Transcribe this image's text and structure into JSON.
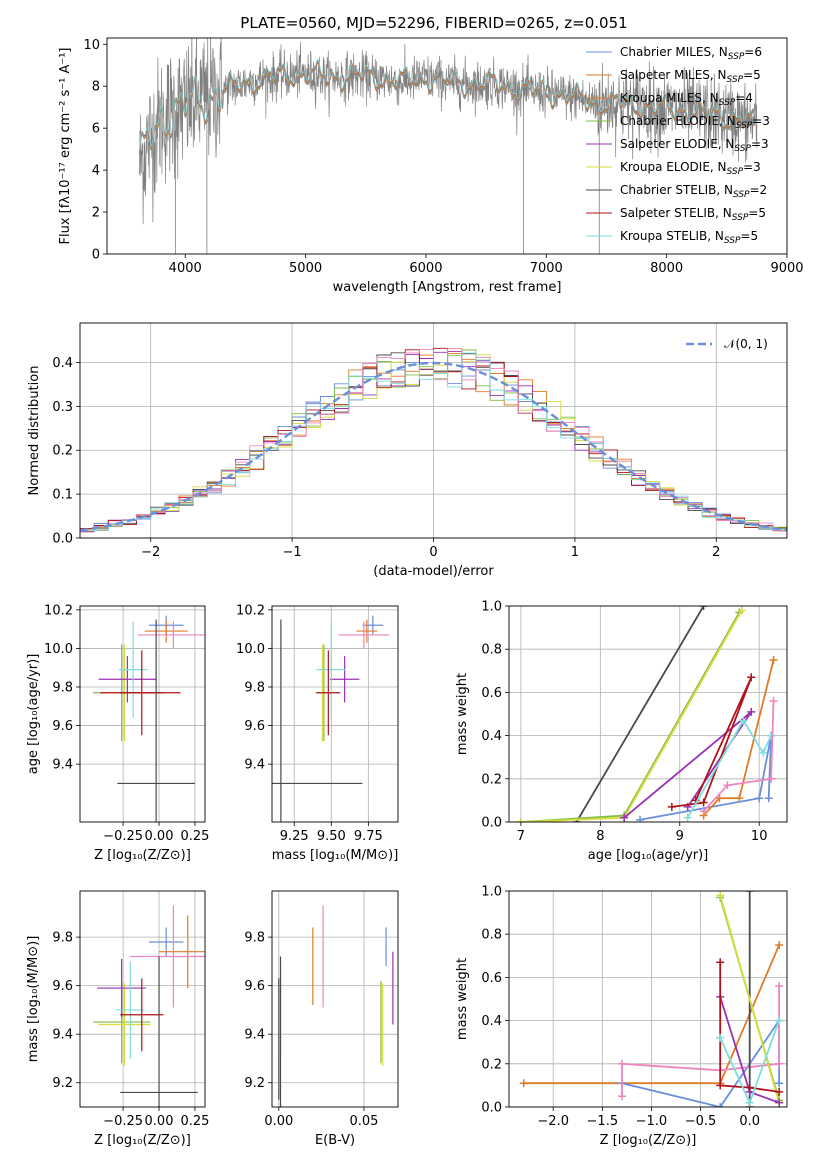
{
  "title": "PLATE=0560, MJD=52296, FIBERID=0265, z=0.051",
  "colors": {
    "blue": "#6a8fdc",
    "orange": "#e07b26",
    "green": "#7fbf45",
    "purple": "#9b30b5",
    "yellow": "#d8dc3e",
    "darkgray": "#4a4a4a",
    "red": "#b0121a",
    "pink": "#ef84c0",
    "cyan": "#7fdde0",
    "data_gray": "#808080",
    "grid": "#b0b0b0"
  },
  "chart_data": [
    {
      "type": "line",
      "id": "spectrum",
      "xlabel": "wavelength [Angstrom, rest frame]",
      "ylabel": "Flux [fλ10⁻¹⁷ erg cm⁻² s⁻¹ A⁻¹]",
      "xlim": [
        3350,
        9000
      ],
      "ylim": [
        0,
        10.3
      ],
      "xticks": [
        "4000",
        "5000",
        "6000",
        "7000",
        "8000",
        "9000"
      ],
      "yticks": [
        "0",
        "2",
        "4",
        "6",
        "8",
        "10"
      ],
      "grid": false,
      "legend_position": "upper right",
      "legend": [
        {
          "label": "Chabrier MILES, N",
          "sub": "SSP",
          "suffix": "=6",
          "color": "#6a8fdc"
        },
        {
          "label": "Salpeter MILES, N",
          "sub": "SSP",
          "suffix": "=5",
          "color": "#e07b26"
        },
        {
          "label": "Kroupa MILES, N",
          "sub": "SSP",
          "suffix": "=4",
          "color": "#e07b26"
        },
        {
          "label": "Chabrier ELODIE, N",
          "sub": "SSP",
          "suffix": "=3",
          "color": "#7fbf45"
        },
        {
          "label": "Salpeter ELODIE, N",
          "sub": "SSP",
          "suffix": "=3",
          "color": "#9b30b5"
        },
        {
          "label": "Kroupa ELODIE, N",
          "sub": "SSP",
          "suffix": "=3",
          "color": "#d8dc3e"
        },
        {
          "label": "Chabrier STELIB, N",
          "sub": "SSP",
          "suffix": "=2",
          "color": "#4a4a4a"
        },
        {
          "label": "Salpeter STELIB, N",
          "sub": "SSP",
          "suffix": "=5",
          "color": "#b0121a"
        },
        {
          "label": "Kroupa STELIB, N",
          "sub": "SSP",
          "suffix": "=5",
          "color": "#7fdde0"
        }
      ],
      "continuum": [
        [
          3620,
          4.3
        ],
        [
          3700,
          5.4
        ],
        [
          3800,
          6.4
        ],
        [
          3900,
          6.8
        ],
        [
          4000,
          7.0
        ],
        [
          4100,
          7.3
        ],
        [
          4200,
          7.5
        ],
        [
          4400,
          8.0
        ],
        [
          4600,
          8.3
        ],
        [
          4800,
          8.5
        ],
        [
          5000,
          8.6
        ],
        [
          5200,
          8.4
        ],
        [
          5400,
          8.5
        ],
        [
          5600,
          8.4
        ],
        [
          5800,
          8.2
        ],
        [
          6000,
          8.4
        ],
        [
          6200,
          8.2
        ],
        [
          6400,
          8.1
        ],
        [
          6600,
          8.1
        ],
        [
          6800,
          7.8
        ],
        [
          7000,
          7.7
        ],
        [
          7200,
          7.5
        ],
        [
          7400,
          7.2
        ],
        [
          7600,
          7.2
        ],
        [
          7800,
          7.1
        ],
        [
          8000,
          6.9
        ],
        [
          8200,
          6.8
        ],
        [
          8400,
          6.6
        ],
        [
          8600,
          6.4
        ],
        [
          8750,
          6.2
        ]
      ]
    },
    {
      "type": "line",
      "id": "residuals",
      "xlabel": "(data-model)/error",
      "ylabel": "Normed distribution",
      "xlim": [
        -2.5,
        2.5
      ],
      "ylim": [
        0,
        0.49
      ],
      "xticks": [
        "−2",
        "−1",
        "0",
        "1",
        "2"
      ],
      "yticks": [
        "0.0",
        "0.1",
        "0.2",
        "0.3",
        "0.4"
      ],
      "grid": true,
      "legend": "𝒩(0, 1)",
      "series": [
        {
          "name": "𝒩(0, 1)",
          "mu": 0,
          "sigma": 1
        }
      ]
    },
    {
      "type": "scatter",
      "id": "age_vs_Z",
      "xlabel": "Z [log₁₀(Z/Z⊙)]",
      "ylabel": "age  [log₁₀(age/yr)]",
      "xlim": [
        -0.55,
        0.32
      ],
      "ylim": [
        9.1,
        10.22
      ],
      "xticks": [
        "−0.25",
        "0.00",
        "0.25"
      ],
      "yticks": [
        "9.4",
        "9.6",
        "9.8",
        "10.0",
        "10.2"
      ],
      "grid": true,
      "points": [
        {
          "x": 0.05,
          "y": 10.12,
          "xerr": 0.12,
          "yerr": 0.05,
          "color": "#6a8fdc"
        },
        {
          "x": 0.05,
          "y": 10.09,
          "xerr": 0.15,
          "yerr": 0.06,
          "color": "#e07b26"
        },
        {
          "x": 0.1,
          "y": 10.07,
          "xerr": 0.25,
          "yerr": 0.07,
          "color": "#ef84c0"
        },
        {
          "x": -0.26,
          "y": 9.77,
          "xerr": 0.2,
          "yerr": 0.25,
          "color": "#7fbf45"
        },
        {
          "x": -0.24,
          "y": 9.77,
          "xerr": 0.18,
          "yerr": 0.25,
          "color": "#d8dc3e"
        },
        {
          "x": -0.22,
          "y": 9.84,
          "xerr": 0.2,
          "yerr": 0.12,
          "color": "#9b30b5"
        },
        {
          "x": -0.18,
          "y": 9.89,
          "xerr": 0.1,
          "yerr": 0.25,
          "color": "#7fdde0"
        },
        {
          "x": -0.12,
          "y": 9.77,
          "xerr": 0.15,
          "yerr": 0.22,
          "color": "#b0121a"
        },
        {
          "x": -0.13,
          "y": 9.77,
          "xerr": 0.28,
          "yerr": 0.0,
          "color": "#b0121a"
        },
        {
          "x": -0.02,
          "y": 9.3,
          "xerr": 0.27,
          "yerr": 0.85,
          "color": "#4a4a4a"
        }
      ]
    },
    {
      "type": "scatter",
      "id": "age_vs_mass",
      "xlabel": "mass [log₁₀(M/M⊙)]",
      "ylabel": "",
      "xlim": [
        9.1,
        9.95
      ],
      "ylim": [
        9.1,
        10.22
      ],
      "xticks": [
        "9.25",
        "9.50",
        "9.75"
      ],
      "yticks": [
        "9.4",
        "9.6",
        "9.8",
        "10.0",
        "10.2"
      ],
      "grid": true,
      "points": [
        {
          "x": 9.78,
          "y": 10.12,
          "xerr": 0.07,
          "yerr": 0.05,
          "color": "#6a8fdc"
        },
        {
          "x": 9.74,
          "y": 10.09,
          "xerr": 0.07,
          "yerr": 0.06,
          "color": "#e07b26"
        },
        {
          "x": 9.72,
          "y": 10.07,
          "xerr": 0.17,
          "yerr": 0.07,
          "color": "#ef84c0"
        },
        {
          "x": 9.45,
          "y": 9.77,
          "xerr": 0.05,
          "yerr": 0.25,
          "color": "#7fbf45"
        },
        {
          "x": 9.44,
          "y": 9.77,
          "xerr": 0.05,
          "yerr": 0.25,
          "color": "#d8dc3e"
        },
        {
          "x": 9.59,
          "y": 9.84,
          "xerr": 0.1,
          "yerr": 0.12,
          "color": "#9b30b5"
        },
        {
          "x": 9.5,
          "y": 9.89,
          "xerr": 0.1,
          "yerr": 0.25,
          "color": "#7fdde0"
        },
        {
          "x": 9.48,
          "y": 9.77,
          "xerr": 0.08,
          "yerr": 0.22,
          "color": "#b0121a"
        },
        {
          "x": 9.16,
          "y": 9.3,
          "xerr": 0.55,
          "yerr": 0.85,
          "color": "#4a4a4a"
        }
      ]
    },
    {
      "type": "line",
      "id": "massweight_vs_age",
      "xlabel": "age  [log₁₀(age/yr)]",
      "ylabel": "mass weight",
      "xlim": [
        6.85,
        10.35
      ],
      "ylim": [
        0,
        1
      ],
      "xticks": [
        "7",
        "8",
        "9",
        "10"
      ],
      "yticks": [
        "0.0",
        "0.2",
        "0.4",
        "0.6",
        "0.8",
        "1.0"
      ],
      "grid": true,
      "series": [
        {
          "color": "#4a4a4a",
          "x": [
            7.7,
            9.3
          ],
          "y": [
            0.0,
            1.0
          ]
        },
        {
          "color": "#7fbf45",
          "x": [
            7.0,
            8.3,
            9.75
          ],
          "y": [
            0.0,
            0.03,
            0.97
          ]
        },
        {
          "color": "#d8dc3e",
          "x": [
            7.0,
            8.3,
            9.78
          ],
          "y": [
            0.0,
            0.02,
            0.98
          ]
        },
        {
          "color": "#6a8fdc",
          "x": [
            8.5,
            10.0,
            10.15,
            10.12
          ],
          "y": [
            0.01,
            0.11,
            0.4,
            0.11
          ]
        },
        {
          "color": "#e07b26",
          "x": [
            9.3,
            9.5,
            9.75,
            10.18
          ],
          "y": [
            0.03,
            0.11,
            0.11,
            0.75
          ]
        },
        {
          "color": "#9b30b5",
          "x": [
            8.3,
            9.9,
            9.1
          ],
          "y": [
            0.02,
            0.51,
            0.07
          ]
        },
        {
          "color": "#b0121a",
          "x": [
            8.9,
            9.3,
            9.9,
            9.2
          ],
          "y": [
            0.07,
            0.09,
            0.67,
            0.1
          ]
        },
        {
          "color": "#7fdde0",
          "x": [
            9.1,
            9.8,
            10.05,
            10.15
          ],
          "y": [
            0.02,
            0.47,
            0.32,
            0.4
          ]
        },
        {
          "color": "#ef84c0",
          "x": [
            9.3,
            9.6,
            10.15,
            10.18
          ],
          "y": [
            0.05,
            0.17,
            0.2,
            0.56
          ]
        }
      ]
    },
    {
      "type": "scatter",
      "id": "mass_vs_Z",
      "xlabel": "Z [log₁₀(Z/Z⊙)]",
      "ylabel": "mass [log₁₀(M/M⊙)]",
      "xlim": [
        -0.55,
        0.32
      ],
      "ylim": [
        9.1,
        9.99
      ],
      "xticks": [
        "−0.25",
        "0.00",
        "0.25"
      ],
      "yticks": [
        "9.2",
        "9.4",
        "9.6",
        "9.8"
      ],
      "grid": true,
      "points": [
        {
          "x": 0.05,
          "y": 9.78,
          "xerr": 0.12,
          "yerr": 0.06,
          "color": "#6a8fdc"
        },
        {
          "x": 0.2,
          "y": 9.74,
          "xerr": 0.2,
          "yerr": 0.15,
          "color": "#e07b26"
        },
        {
          "x": 0.1,
          "y": 9.72,
          "xerr": 0.3,
          "yerr": 0.21,
          "color": "#ef84c0"
        },
        {
          "x": -0.26,
          "y": 9.45,
          "xerr": 0.2,
          "yerr": 0.17,
          "color": "#7fbf45"
        },
        {
          "x": -0.24,
          "y": 9.44,
          "xerr": 0.18,
          "yerr": 0.17,
          "color": "#d8dc3e"
        },
        {
          "x": -0.26,
          "y": 9.59,
          "xerr": 0.17,
          "yerr": 0.12,
          "color": "#9b30b5"
        },
        {
          "x": -0.2,
          "y": 9.5,
          "xerr": 0.1,
          "yerr": 0.2,
          "color": "#7fdde0"
        },
        {
          "x": -0.12,
          "y": 9.48,
          "xerr": 0.15,
          "yerr": 0.15,
          "color": "#b0121a"
        },
        {
          "x": 0.0,
          "y": 9.16,
          "xerr": 0.27,
          "yerr": 0.56,
          "color": "#4a4a4a"
        }
      ]
    },
    {
      "type": "scatter",
      "id": "mass_vs_EBV",
      "xlabel": "E(B-V)",
      "ylabel": "",
      "xlim": [
        -0.004,
        0.07
      ],
      "ylim": [
        9.1,
        9.99
      ],
      "xticks": [
        "0.00",
        "0.05"
      ],
      "yticks": [
        "9.2",
        "9.4",
        "9.6",
        "9.8"
      ],
      "grid": true,
      "points": [
        {
          "x": 0.063,
          "y": 9.76,
          "xerr": 0,
          "yerr": 0.08,
          "color": "#6a8fdc"
        },
        {
          "x": 0.02,
          "y": 9.68,
          "xerr": 0,
          "yerr": 0.16,
          "color": "#e07b26"
        },
        {
          "x": 0.026,
          "y": 9.72,
          "xerr": 0,
          "yerr": 0.21,
          "color": "#ef84c0"
        },
        {
          "x": 0.06,
          "y": 9.45,
          "xerr": 0,
          "yerr": 0.17,
          "color": "#7fbf45"
        },
        {
          "x": 0.061,
          "y": 9.44,
          "xerr": 0,
          "yerr": 0.17,
          "color": "#d8dc3e"
        },
        {
          "x": 0.067,
          "y": 9.59,
          "xerr": 0,
          "yerr": 0.15,
          "color": "#9b30b5"
        },
        {
          "x": 0.001,
          "y": 9.5,
          "xerr": 0,
          "yerr": 0.2,
          "color": "#7fdde0"
        },
        {
          "x": 0.0,
          "y": 9.38,
          "xerr": 0,
          "yerr": 0.25,
          "color": "#4a4a4a"
        },
        {
          "x": 0.001,
          "y": 9.16,
          "xerr": 0,
          "yerr": 0.56,
          "color": "#4a4a4a"
        }
      ]
    },
    {
      "type": "line",
      "id": "massweight_vs_Z",
      "xlabel": "Z [log₁₀(Z/Z⊙)]",
      "ylabel": "mass weight",
      "xlim": [
        -2.45,
        0.38
      ],
      "ylim": [
        0,
        1
      ],
      "xticks": [
        "−2.0",
        "−1.5",
        "−1.0",
        "−0.5",
        "0.0"
      ],
      "yticks": [
        "0.0",
        "0.2",
        "0.4",
        "0.6",
        "0.8",
        "1.0"
      ],
      "grid": true,
      "series": [
        {
          "color": "#e07b26",
          "x": [
            -2.3,
            -1.3,
            -0.3,
            0.3
          ],
          "y": [
            0.11,
            0.11,
            0.11,
            0.75
          ]
        },
        {
          "color": "#6a8fdc",
          "x": [
            -1.3,
            -0.3,
            0.3,
            0.3
          ],
          "y": [
            0.11,
            0.0,
            0.4,
            0.11
          ]
        },
        {
          "color": "#ef84c0",
          "x": [
            -1.3,
            -1.3,
            -0.3,
            0.3,
            0.3
          ],
          "y": [
            0.05,
            0.2,
            0.17,
            0.2,
            0.56
          ]
        },
        {
          "color": "#4a4a4a",
          "x": [
            0.0,
            0.0
          ],
          "y": [
            0.0,
            1.0
          ]
        },
        {
          "color": "#7fbf45",
          "x": [
            -0.3,
            0.3
          ],
          "y": [
            0.97,
            0.03
          ]
        },
        {
          "color": "#d8dc3e",
          "x": [
            -0.3,
            0.3
          ],
          "y": [
            0.98,
            0.02
          ]
        },
        {
          "color": "#9b30b5",
          "x": [
            -0.3,
            0.0,
            0.3
          ],
          "y": [
            0.51,
            0.07,
            0.02
          ]
        },
        {
          "color": "#b0121a",
          "x": [
            -0.3,
            -0.3,
            0.0,
            0.3
          ],
          "y": [
            0.67,
            0.1,
            0.09,
            0.07
          ]
        },
        {
          "color": "#7fdde0",
          "x": [
            -0.3,
            0.0,
            0.3
          ],
          "y": [
            0.32,
            0.02,
            0.4
          ]
        }
      ]
    }
  ]
}
